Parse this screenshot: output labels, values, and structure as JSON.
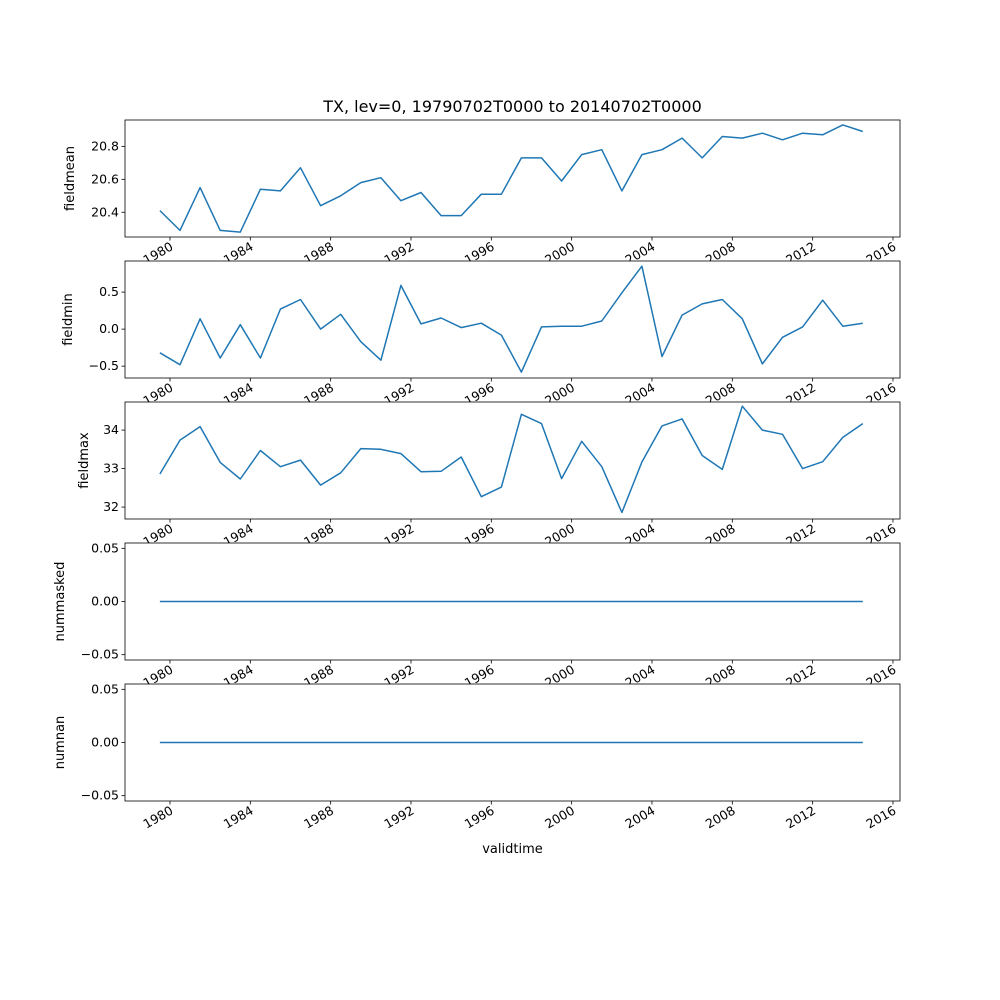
{
  "chart_data": {
    "type": "line",
    "title": "TX, lev=0, 19790702T0000 to 20140702T0000",
    "xlabel": "validtime",
    "line_color": "#1f77b4",
    "xlim": [
      1977.76,
      2016.35
    ],
    "xticks": [
      1980,
      1984,
      1988,
      1992,
      1996,
      2000,
      2004,
      2008,
      2012,
      2016
    ],
    "x": [
      1979.5,
      1980.5,
      1981.5,
      1982.5,
      1983.5,
      1984.5,
      1985.5,
      1986.5,
      1987.5,
      1988.5,
      1989.5,
      1990.5,
      1991.5,
      1992.5,
      1993.5,
      1994.5,
      1995.5,
      1996.5,
      1997.5,
      1998.5,
      1999.5,
      2000.5,
      2001.5,
      2002.5,
      2003.5,
      2004.5,
      2005.5,
      2006.5,
      2007.5,
      2008.5,
      2009.5,
      2010.5,
      2011.5,
      2012.5,
      2013.5,
      2014.5
    ],
    "panels": [
      {
        "ylabel": "fieldmean",
        "ylim": [
          20.25,
          20.96
        ],
        "yticks": [
          20.4,
          20.6,
          20.8
        ],
        "ytick_labels": [
          "20.4",
          "20.6",
          "20.8"
        ],
        "values": [
          20.41,
          20.29,
          20.55,
          20.29,
          20.28,
          20.54,
          20.53,
          20.67,
          20.44,
          20.5,
          20.58,
          20.61,
          20.47,
          20.52,
          20.38,
          20.38,
          20.51,
          20.51,
          20.73,
          20.73,
          20.59,
          20.75,
          20.78,
          20.53,
          20.75,
          20.78,
          20.85,
          20.73,
          20.86,
          20.85,
          20.88,
          20.84,
          20.88,
          20.87,
          20.93,
          20.89
        ]
      },
      {
        "ylabel": "fieldmin",
        "ylim": [
          -0.66,
          0.92
        ],
        "yticks": [
          -0.5,
          0.0,
          0.5
        ],
        "ytick_labels": [
          "−0.5",
          "0.0",
          "0.5"
        ],
        "values": [
          -0.32,
          -0.48,
          0.14,
          -0.39,
          0.06,
          -0.39,
          0.27,
          0.4,
          0.0,
          0.2,
          -0.17,
          -0.42,
          0.59,
          0.07,
          0.15,
          0.02,
          0.08,
          -0.08,
          -0.58,
          0.03,
          0.04,
          0.04,
          0.11,
          0.49,
          0.85,
          -0.37,
          0.19,
          0.34,
          0.4,
          0.14,
          -0.47,
          -0.11,
          0.03,
          0.39,
          0.04,
          0.08
        ]
      },
      {
        "ylabel": "fieldmax",
        "ylim": [
          31.69,
          34.73
        ],
        "yticks": [
          32,
          33,
          34
        ],
        "ytick_labels": [
          "32",
          "33",
          "34"
        ],
        "values": [
          32.86,
          33.74,
          34.09,
          33.16,
          32.73,
          33.47,
          33.05,
          33.22,
          32.57,
          32.89,
          33.52,
          33.5,
          33.39,
          32.92,
          32.93,
          33.3,
          32.27,
          32.52,
          34.41,
          34.17,
          32.74,
          33.71,
          33.05,
          31.86,
          33.17,
          34.11,
          34.29,
          33.34,
          32.98,
          34.62,
          34.0,
          33.89,
          33.0,
          33.18,
          33.81,
          34.17
        ]
      },
      {
        "ylabel": "nummasked",
        "ylim": [
          -0.055,
          0.055
        ],
        "yticks": [
          -0.05,
          0.0,
          0.05
        ],
        "ytick_labels": [
          "−0.05",
          "0.00",
          "0.05"
        ],
        "values": [
          0,
          0,
          0,
          0,
          0,
          0,
          0,
          0,
          0,
          0,
          0,
          0,
          0,
          0,
          0,
          0,
          0,
          0,
          0,
          0,
          0,
          0,
          0,
          0,
          0,
          0,
          0,
          0,
          0,
          0,
          0,
          0,
          0,
          0,
          0,
          0
        ]
      },
      {
        "ylabel": "numnan",
        "ylim": [
          -0.055,
          0.055
        ],
        "yticks": [
          -0.05,
          0.0,
          0.05
        ],
        "ytick_labels": [
          "−0.05",
          "0.00",
          "0.05"
        ],
        "values": [
          0,
          0,
          0,
          0,
          0,
          0,
          0,
          0,
          0,
          0,
          0,
          0,
          0,
          0,
          0,
          0,
          0,
          0,
          0,
          0,
          0,
          0,
          0,
          0,
          0,
          0,
          0,
          0,
          0,
          0,
          0,
          0,
          0,
          0,
          0,
          0
        ]
      }
    ]
  }
}
